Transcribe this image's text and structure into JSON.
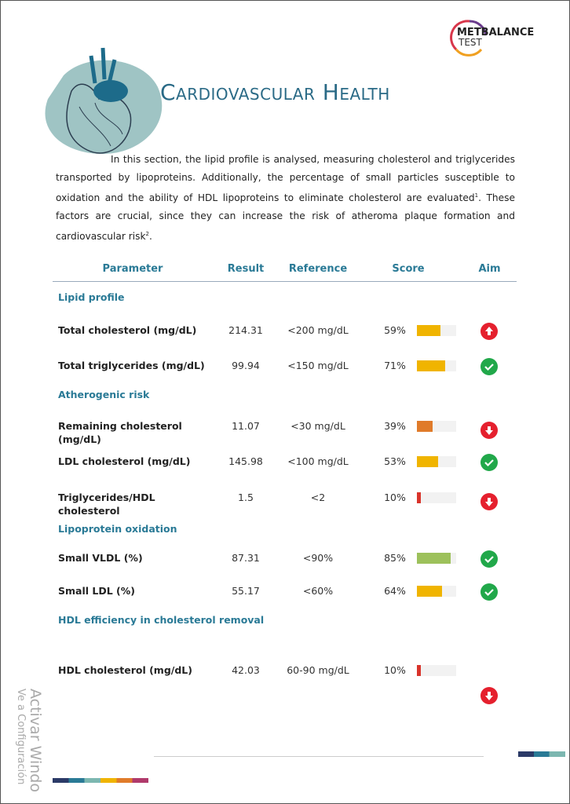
{
  "header": {
    "logo_top": "METBALANCE",
    "logo_bottom": "TEST",
    "title": "Cardiovascular Health"
  },
  "intro": [
    {
      "text": "In this section, the lipid profile is analysed, measuring cholesterol and triglycerides transported by lipoproteins. Additionally, the percentage of small particles susceptible to oxidation and the ability of HDL lipoproteins to eliminate cholesterol are evaluated"
    },
    {
      "sup": "1"
    },
    {
      "text": ". These factors are crucial, since they can increase the risk of atheroma plaque formation and cardiovascular risk"
    },
    {
      "sup": "2"
    },
    {
      "text": "."
    }
  ],
  "table": {
    "columns": [
      "Parameter",
      "Result",
      "Reference",
      "Score",
      "Aim"
    ],
    "rows": [
      {
        "section": "Lipid profile"
      },
      {
        "parameter": "Total cholesterol (mg/dL)",
        "result": "214.31",
        "reference": "<200 mg/dL",
        "score": 59,
        "score_label": "59%",
        "bar_color": "#f0b400",
        "aim": "up"
      },
      {
        "parameter": "Total triglycerides (mg/dL)",
        "result": "99.94",
        "reference": "<150 mg/dL",
        "score": 71,
        "score_label": "71%",
        "bar_color": "#f0b400",
        "aim": "check"
      },
      {
        "section": "Atherogenic risk"
      },
      {
        "parameter": "Remaining cholesterol (mg/dL)",
        "result": "11.07",
        "reference": "<30 mg/dL",
        "score": 39,
        "score_label": "39%",
        "bar_color": "#e07b2a",
        "aim": "down"
      },
      {
        "parameter": "LDL cholesterol (mg/dL)",
        "result": "145.98",
        "reference": "<100 mg/dL",
        "score": 53,
        "score_label": "53%",
        "bar_color": "#f0b400",
        "aim": "check"
      },
      {
        "parameter": "Triglycerides/HDL cholesterol",
        "result": "1.5",
        "reference": "<2",
        "score": 10,
        "score_label": "10%",
        "bar_color": "#d9342b",
        "aim": "down"
      },
      {
        "section": "Lipoprotein oxidation"
      },
      {
        "parameter": "Small VLDL (%)",
        "result": "87.31",
        "reference": "<90%",
        "score": 85,
        "score_label": "85%",
        "bar_color": "#9dc15b",
        "aim": "check"
      },
      {
        "parameter": "Small LDL (%)",
        "result": "55.17",
        "reference": "<60%",
        "score": 64,
        "score_label": "64%",
        "bar_color": "#f0b400",
        "aim": "check"
      },
      {
        "section": "HDL efficiency in cholesterol removal"
      },
      {
        "parameter": "HDL cholesterol (mg/dL)",
        "result": "42.03",
        "reference": "60-90 mg/dL",
        "score": 10,
        "score_label": "10%",
        "bar_color": "#d9342b",
        "aim": "down"
      }
    ]
  },
  "watermark": {
    "line1": "Activar Windo",
    "line2": "Ve a Configuración"
  }
}
